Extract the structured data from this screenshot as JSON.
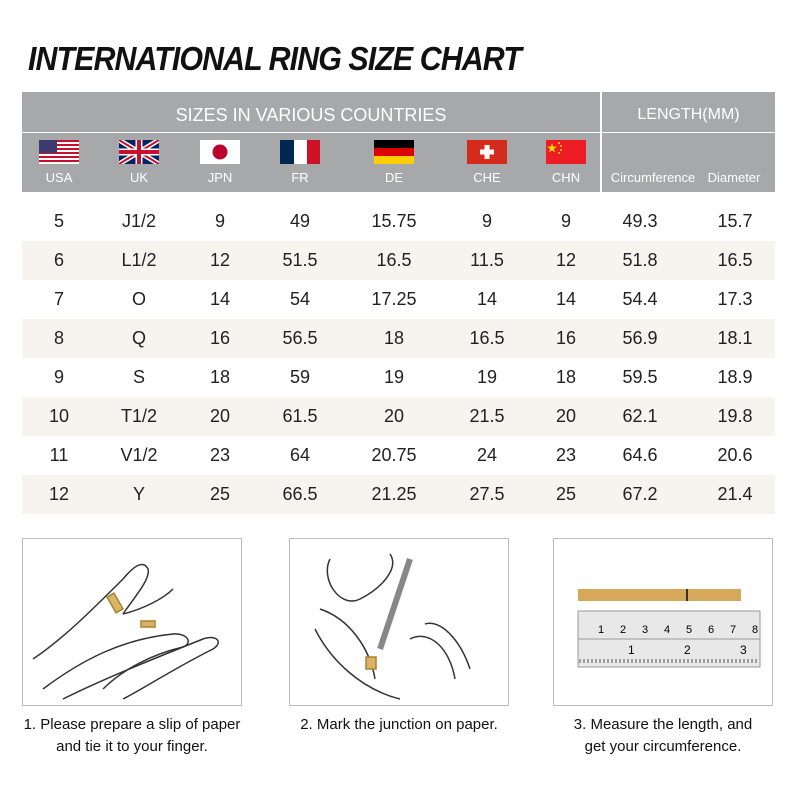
{
  "title": "INTERNATIONAL RING SIZE CHART",
  "header": {
    "sizes_label": "SIZES IN VARIOUS COUNTRIES",
    "length_label": "LENGTH(MM)",
    "columns": [
      "USA",
      "UK",
      "JPN",
      "FR",
      "DE",
      "CHE",
      "CHN",
      "Circumference",
      "Diameter"
    ],
    "flags": [
      "usa-flag",
      "uk-flag",
      "japan-flag",
      "france-flag",
      "germany-flag",
      "switzerland-flag",
      "china-flag"
    ]
  },
  "rows": [
    [
      "5",
      "J1/2",
      "9",
      "49",
      "15.75",
      "9",
      "9",
      "49.3",
      "15.7"
    ],
    [
      "6",
      "L1/2",
      "12",
      "51.5",
      "16.5",
      "11.5",
      "12",
      "51.8",
      "16.5"
    ],
    [
      "7",
      "O",
      "14",
      "54",
      "17.25",
      "14",
      "14",
      "54.4",
      "17.3"
    ],
    [
      "8",
      "Q",
      "16",
      "56.5",
      "18",
      "16.5",
      "16",
      "56.9",
      "18.1"
    ],
    [
      "9",
      "S",
      "18",
      "59",
      "19",
      "19",
      "18",
      "59.5",
      "18.9"
    ],
    [
      "10",
      "T1/2",
      "20",
      "61.5",
      "20",
      "21.5",
      "20",
      "62.1",
      "19.8"
    ],
    [
      "11",
      "V1/2",
      "23",
      "64",
      "20.75",
      "24",
      "23",
      "64.6",
      "20.6"
    ],
    [
      "12",
      "Y",
      "25",
      "66.5",
      "21.25",
      "27.5",
      "25",
      "67.2",
      "21.4"
    ]
  ],
  "steps": [
    {
      "line1": "1. Please prepare a slip of paper",
      "line2": "and tie it to your finger."
    },
    {
      "line1": "2. Mark the junction on paper.",
      "line2": ""
    },
    {
      "line1": "3. Measure the length, and",
      "line2": "get your circumference."
    }
  ],
  "ruler": {
    "top_ticks": [
      "1",
      "2",
      "3",
      "4",
      "5",
      "6",
      "7",
      "8"
    ],
    "bottom_ticks": [
      "1",
      "2",
      "3"
    ]
  }
}
